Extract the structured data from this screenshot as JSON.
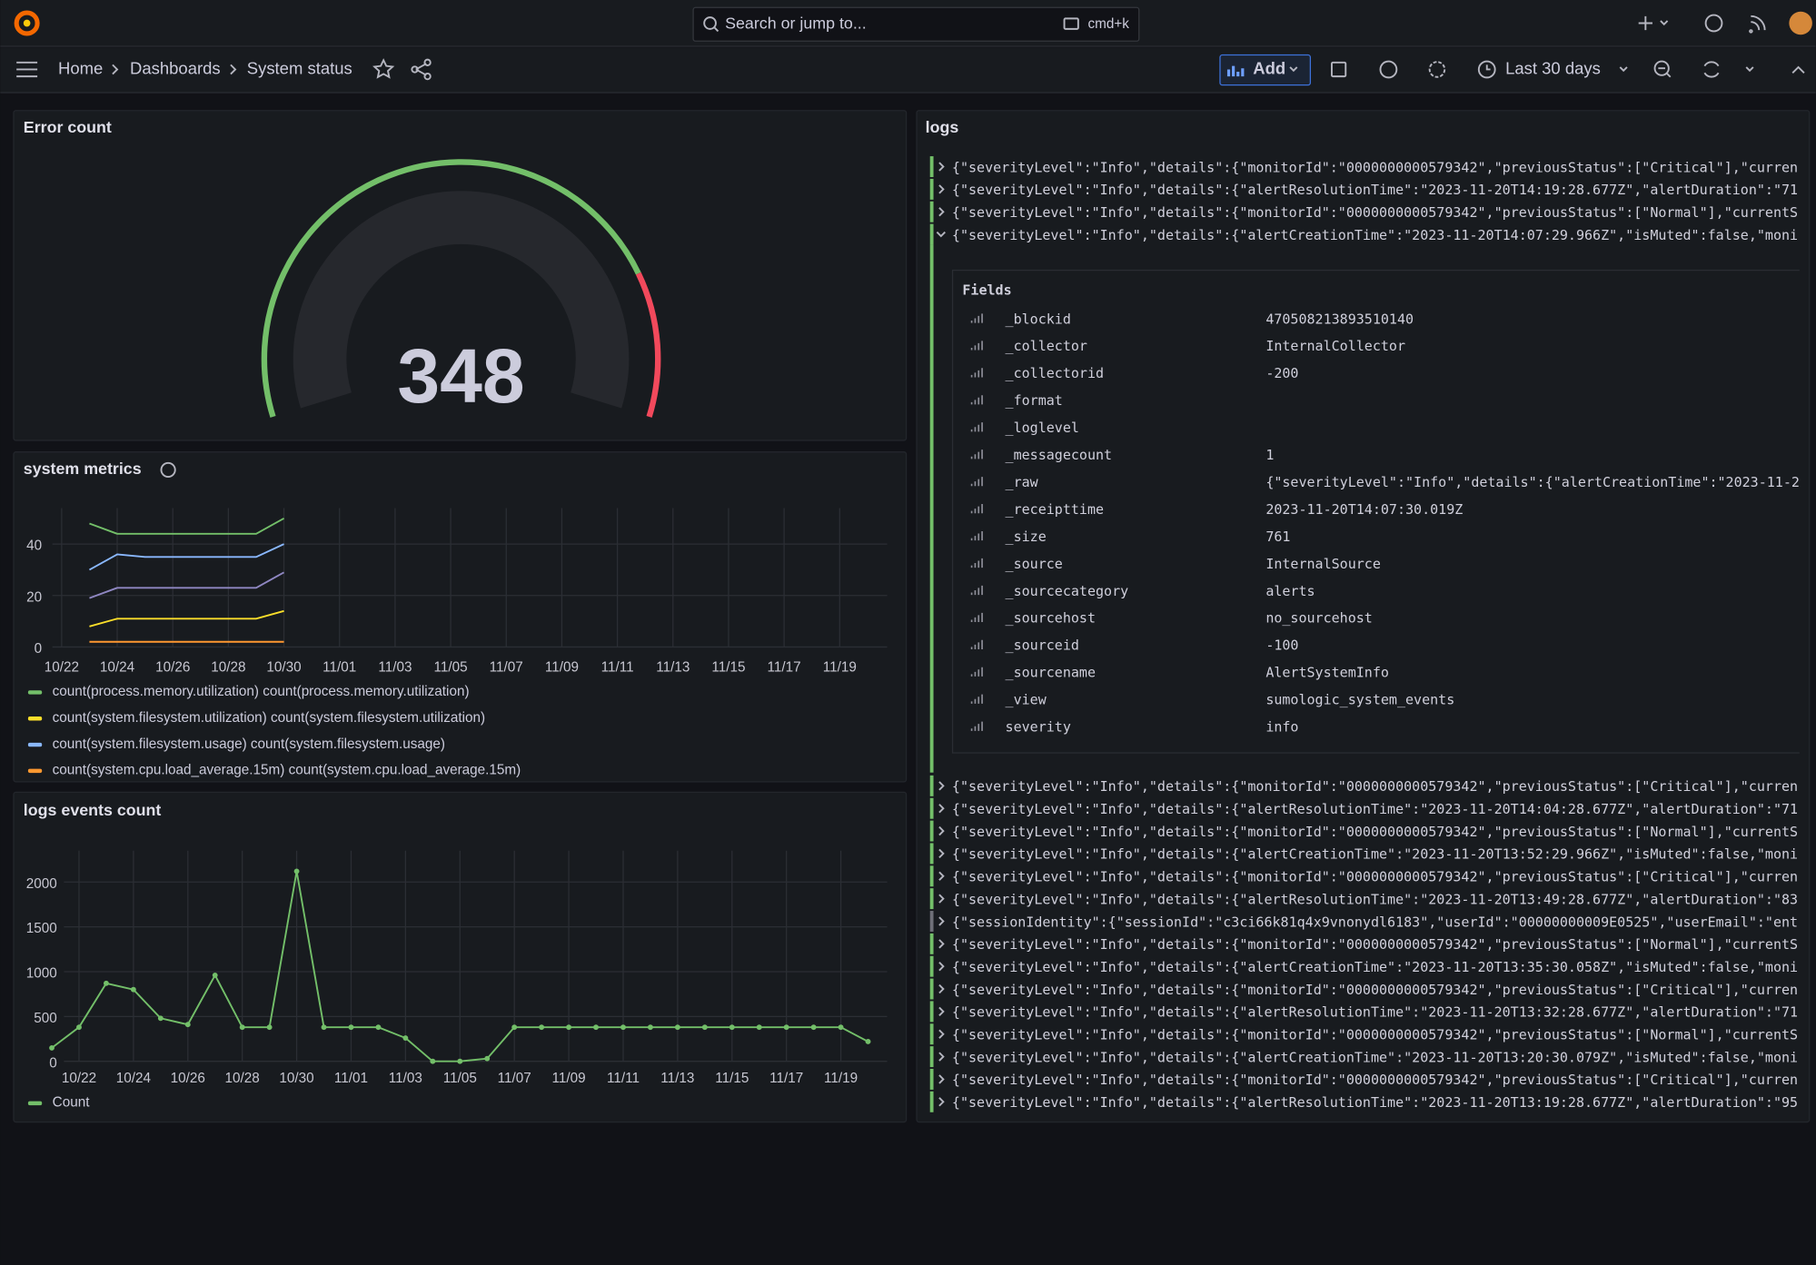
{
  "header": {
    "search": "Search or jump to...",
    "shortcut": "cmd+k",
    "breadcrumbs": [
      "Home",
      "Dashboards",
      "System status"
    ],
    "add": "Add",
    "time_range": "Last 30 days"
  },
  "chart_data": [
    {
      "type": "gauge",
      "title": "Error count",
      "value": 348,
      "color": "#73bf69",
      "threshold_color": "#f2495c"
    },
    {
      "type": "line",
      "title": "system metrics",
      "categories": [
        null,
        "10/22",
        null,
        "10/24",
        null,
        "10/26",
        null,
        "10/28",
        null,
        "10/30",
        null,
        "11/01",
        null,
        "11/03",
        null,
        "11/05",
        null,
        "11/07",
        null,
        "11/09",
        null,
        "11/11",
        null,
        "11/13",
        null,
        "11/15",
        null,
        "11/17",
        null,
        "11/19",
        null
      ],
      "series": [
        {
          "name": "count(process.memory.utilization) count(process.memory.utilization)",
          "color": "#73bf69",
          "values": [
            null,
            null,
            48,
            44,
            44,
            44,
            44,
            44,
            44,
            50,
            null,
            null,
            null,
            null,
            null,
            null,
            null,
            null,
            null,
            null,
            null,
            null,
            null,
            null,
            null,
            null,
            null,
            null,
            null,
            null,
            null
          ]
        },
        {
          "name": "count(system.filesystem.utilization) count(system.filesystem.utilization)",
          "color": "#fade2a",
          "values": [
            null,
            null,
            8,
            11,
            11,
            11,
            11,
            11,
            11,
            14,
            null,
            null,
            null,
            null,
            null,
            null,
            null,
            null,
            null,
            null,
            null,
            null,
            null,
            null,
            null,
            null,
            null,
            null,
            null,
            null,
            null
          ]
        },
        {
          "name": "count(system.filesystem.usage) count(system.filesystem.usage)",
          "color": "#8ab8ff",
          "values": [
            null,
            null,
            30,
            36,
            35,
            35,
            35,
            35,
            35,
            40,
            null,
            null,
            null,
            null,
            null,
            null,
            null,
            null,
            null,
            null,
            null,
            null,
            null,
            null,
            null,
            null,
            null,
            null,
            null,
            null,
            null
          ]
        },
        {
          "name": "count(system.cpu.load_average.15m) count(system.cpu.load_average.15m)",
          "color": "#ff9830",
          "values": [
            null,
            null,
            2,
            2,
            2,
            2,
            2,
            2,
            2,
            2,
            null,
            null,
            null,
            null,
            null,
            null,
            null,
            null,
            null,
            null,
            null,
            null,
            null,
            null,
            null,
            null,
            null,
            null,
            null,
            null,
            null
          ]
        },
        {
          "color": "#8f87c2",
          "values": [
            null,
            null,
            19,
            23,
            23,
            23,
            23,
            23,
            23,
            29,
            null,
            null,
            null,
            null,
            null,
            null,
            null,
            null,
            null,
            null,
            null,
            null,
            null,
            null,
            null,
            null,
            null,
            null,
            null,
            null,
            null
          ]
        }
      ],
      "ylim": [
        0,
        54
      ],
      "yticks": [
        0,
        20,
        40
      ],
      "grid": true,
      "points": false
    },
    {
      "type": "line",
      "title": "logs events count",
      "categories": [
        null,
        "10/22",
        null,
        "10/24",
        null,
        "10/26",
        null,
        "10/28",
        null,
        "10/30",
        null,
        "11/01",
        null,
        "11/03",
        null,
        "11/05",
        null,
        "11/07",
        null,
        "11/09",
        null,
        "11/11",
        null,
        "11/13",
        null,
        "11/15",
        null,
        "11/17",
        null,
        "11/19",
        null
      ],
      "series": [
        {
          "name": "Count",
          "color": "#73bf69",
          "values": [
            150,
            380,
            870,
            800,
            480,
            410,
            960,
            380,
            380,
            2120,
            380,
            380,
            380,
            260,
            0,
            0,
            30,
            380,
            380,
            380,
            380,
            380,
            380,
            380,
            380,
            380,
            380,
            380,
            380,
            380,
            220
          ]
        }
      ],
      "ylim": [
        0,
        2350
      ],
      "yticks": [
        0,
        500,
        1000,
        1500,
        2000
      ],
      "grid": true,
      "points": true
    }
  ],
  "logs": {
    "title": "logs",
    "entries": [
      {
        "text": "{\"severityLevel\":\"Info\",\"details\":{\"monitorId\":\"0000000000579342\",\"previousStatus\":[\"Critical\"],\"curren",
        "color": "#73bf69"
      },
      {
        "text": "{\"severityLevel\":\"Info\",\"details\":{\"alertResolutionTime\":\"2023-11-20T14:19:28.677Z\",\"alertDuration\":\"71",
        "color": "#73bf69"
      },
      {
        "text": "{\"severityLevel\":\"Info\",\"details\":{\"monitorId\":\"0000000000579342\",\"previousStatus\":[\"Normal\"],\"currentS",
        "color": "#73bf69"
      }
    ],
    "expanded": {
      "text": "{\"severityLevel\":\"Info\",\"details\":{\"alertCreationTime\":\"2023-11-20T14:07:29.966Z\",\"isMuted\":false,\"moni",
      "color": "#73bf69",
      "fields_title": "Fields",
      "fields": [
        {
          "name": "_blockid",
          "value": "470508213893510140"
        },
        {
          "name": "_collector",
          "value": "InternalCollector"
        },
        {
          "name": "_collectorid",
          "value": "-200"
        },
        {
          "name": "_format"
        },
        {
          "name": "_loglevel"
        },
        {
          "name": "_messagecount",
          "value": "1"
        },
        {
          "name": "_raw",
          "value": "{\"severityLevel\":\"Info\",\"details\":{\"alertCreationTime\":\"2023-11-2"
        },
        {
          "name": "_receipttime",
          "value": "2023-11-20T14:07:30.019Z"
        },
        {
          "name": "_size",
          "value": "761"
        },
        {
          "name": "_source",
          "value": "InternalSource"
        },
        {
          "name": "_sourcecategory",
          "value": "alerts"
        },
        {
          "name": "_sourcehost",
          "value": "no_sourcehost"
        },
        {
          "name": "_sourceid",
          "value": "-100"
        },
        {
          "name": "_sourcename",
          "value": "AlertSystemInfo"
        },
        {
          "name": "_view",
          "value": "sumologic_system_events"
        },
        {
          "name": "severity",
          "value": "info"
        }
      ]
    },
    "entries_after": [
      {
        "text": "{\"severityLevel\":\"Info\",\"details\":{\"monitorId\":\"0000000000579342\",\"previousStatus\":[\"Critical\"],\"curren",
        "color": "#73bf69"
      },
      {
        "text": "{\"severityLevel\":\"Info\",\"details\":{\"alertResolutionTime\":\"2023-11-20T14:04:28.677Z\",\"alertDuration\":\"71",
        "color": "#73bf69"
      },
      {
        "text": "{\"severityLevel\":\"Info\",\"details\":{\"monitorId\":\"0000000000579342\",\"previousStatus\":[\"Normal\"],\"currentS",
        "color": "#73bf69"
      },
      {
        "text": "{\"severityLevel\":\"Info\",\"details\":{\"alertCreationTime\":\"2023-11-20T13:52:29.966Z\",\"isMuted\":false,\"moni",
        "color": "#73bf69"
      },
      {
        "text": "{\"severityLevel\":\"Info\",\"details\":{\"monitorId\":\"0000000000579342\",\"previousStatus\":[\"Critical\"],\"curren",
        "color": "#73bf69"
      },
      {
        "text": "{\"severityLevel\":\"Info\",\"details\":{\"alertResolutionTime\":\"2023-11-20T13:49:28.677Z\",\"alertDuration\":\"83",
        "color": "#73bf69"
      },
      {
        "text": "{\"sessionIdentity\":{\"sessionId\":\"c3ci66k81q4x9vnonydl6183\",\"userId\":\"00000000009E0525\",\"userEmail\":\"ent",
        "color": "#6e6f78"
      },
      {
        "text": "{\"severityLevel\":\"Info\",\"details\":{\"monitorId\":\"0000000000579342\",\"previousStatus\":[\"Normal\"],\"currentS",
        "color": "#73bf69"
      },
      {
        "text": "{\"severityLevel\":\"Info\",\"details\":{\"alertCreationTime\":\"2023-11-20T13:35:30.058Z\",\"isMuted\":false,\"moni",
        "color": "#73bf69"
      },
      {
        "text": "{\"severityLevel\":\"Info\",\"details\":{\"monitorId\":\"0000000000579342\",\"previousStatus\":[\"Critical\"],\"curren",
        "color": "#73bf69"
      },
      {
        "text": "{\"severityLevel\":\"Info\",\"details\":{\"alertResolutionTime\":\"2023-11-20T13:32:28.677Z\",\"alertDuration\":\"71",
        "color": "#73bf69"
      },
      {
        "text": "{\"severityLevel\":\"Info\",\"details\":{\"monitorId\":\"0000000000579342\",\"previousStatus\":[\"Normal\"],\"currentS",
        "color": "#73bf69"
      },
      {
        "text": "{\"severityLevel\":\"Info\",\"details\":{\"alertCreationTime\":\"2023-11-20T13:20:30.079Z\",\"isMuted\":false,\"moni",
        "color": "#73bf69"
      },
      {
        "text": "{\"severityLevel\":\"Info\",\"details\":{\"monitorId\":\"0000000000579342\",\"previousStatus\":[\"Critical\"],\"curren",
        "color": "#73bf69"
      },
      {
        "text": "{\"severityLevel\":\"Info\",\"details\":{\"alertResolutionTime\":\"2023-11-20T13:19:28.677Z\",\"alertDuration\":\"95",
        "color": "#73bf69"
      }
    ]
  }
}
